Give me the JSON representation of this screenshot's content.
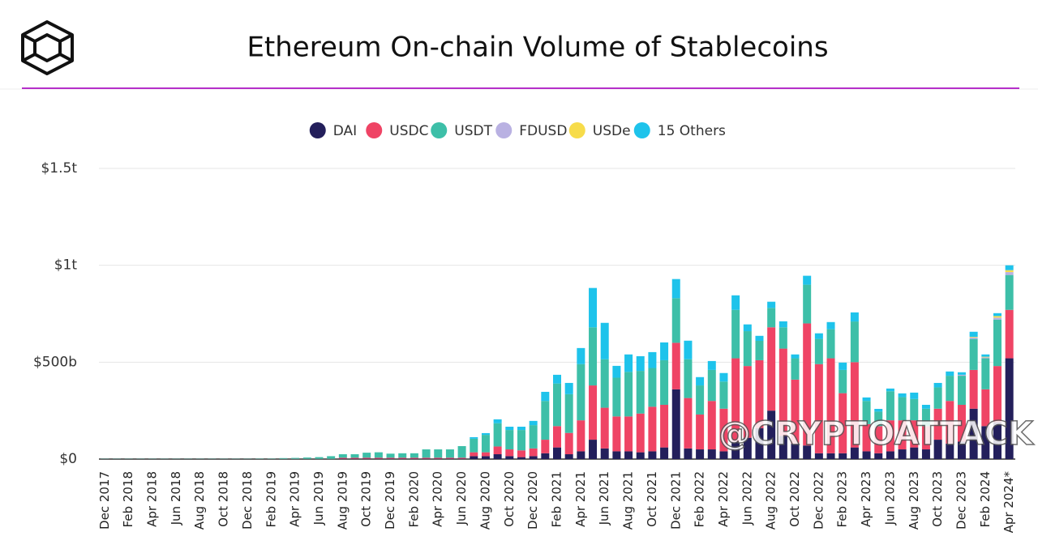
{
  "chart_data": {
    "type": "stacked-bar",
    "title": "Ethereum On-chain Volume of Stablecoins",
    "categories": [
      "Dec 2017",
      null,
      "Feb 2018",
      null,
      "Apr 2018",
      null,
      "Jun 2018",
      null,
      "Aug 2018",
      null,
      "Oct 2018",
      null,
      "Dec 2018",
      null,
      "Feb 2019",
      null,
      "Apr 2019",
      null,
      "Jun 2019",
      null,
      "Aug 2019",
      null,
      "Oct 2019",
      null,
      "Dec 2019",
      null,
      "Feb 2020",
      null,
      "Apr 2020",
      null,
      "Jun 2020",
      null,
      "Aug 2020",
      null,
      "Oct 2020",
      null,
      "Dec 2020",
      null,
      "Feb 2021",
      null,
      "Apr 2021",
      null,
      "Jun 2021",
      null,
      "Aug 2021",
      null,
      "Oct 2021",
      null,
      "Dec 2021",
      null,
      "Feb 2022",
      null,
      "Apr 2022",
      null,
      "Jun 2022",
      null,
      "Aug 2022",
      null,
      "Oct 2022",
      null,
      "Dec 2022",
      null,
      "Feb 2023",
      null,
      "Apr 2023",
      null,
      "Jun 2023",
      null,
      "Aug 2023",
      null,
      "Oct 2023",
      null,
      "Dec 2023",
      null,
      "Feb 2024",
      null,
      "Apr 2024*"
    ],
    "series": [
      {
        "name": "DAI",
        "color": "#231f5b",
        "values": [
          0,
          0,
          0,
          0,
          0,
          0,
          0,
          0,
          0,
          0,
          0,
          0,
          0,
          0,
          0,
          0,
          0,
          0,
          0,
          0,
          2,
          2,
          2,
          2,
          2,
          2,
          2,
          2,
          2,
          2,
          2,
          15,
          15,
          25,
          15,
          10,
          15,
          30,
          60,
          25,
          40,
          100,
          55,
          40,
          40,
          35,
          40,
          60,
          360,
          55,
          50,
          50,
          40,
          90,
          110,
          160,
          250,
          120,
          80,
          70,
          30,
          30,
          30,
          60,
          40,
          30,
          40,
          50,
          60,
          50,
          100,
          80,
          90,
          260,
          170,
          190,
          520
        ]
      },
      {
        "name": "USDC",
        "color": "#ef4465",
        "values": [
          0,
          0,
          0,
          0,
          0,
          0,
          0,
          0,
          0,
          0,
          0,
          0,
          0,
          1,
          1,
          1,
          1,
          1,
          1,
          1,
          5,
          5,
          5,
          5,
          5,
          5,
          5,
          5,
          5,
          5,
          5,
          20,
          20,
          40,
          35,
          35,
          40,
          70,
          110,
          110,
          160,
          280,
          210,
          180,
          180,
          200,
          230,
          220,
          240,
          260,
          180,
          250,
          220,
          430,
          370,
          350,
          430,
          450,
          330,
          630,
          460,
          490,
          310,
          440,
          140,
          140,
          160,
          150,
          140,
          120,
          160,
          220,
          190,
          200,
          190,
          290,
          250
        ]
      },
      {
        "name": "USDT",
        "color": "#3dbfa8",
        "values": [
          1,
          1,
          1,
          1,
          1,
          1,
          1,
          1,
          1,
          1,
          1,
          1,
          1,
          2,
          2,
          4,
          5,
          7,
          9,
          14,
          18,
          18,
          26,
          28,
          21,
          23,
          23,
          43,
          43,
          43,
          60,
          70,
          90,
          120,
          100,
          105,
          120,
          200,
          220,
          200,
          290,
          300,
          250,
          200,
          230,
          220,
          200,
          230,
          230,
          200,
          150,
          160,
          140,
          250,
          180,
          100,
          100,
          110,
          110,
          200,
          130,
          150,
          120,
          210,
          120,
          75,
          150,
          120,
          110,
          90,
          110,
          130,
          150,
          160,
          160,
          240,
          180
        ]
      },
      {
        "name": "FDUSD",
        "color": "#b9b1e2",
        "values": [
          0,
          0,
          0,
          0,
          0,
          0,
          0,
          0,
          0,
          0,
          0,
          0,
          0,
          0,
          0,
          0,
          0,
          0,
          0,
          0,
          0,
          0,
          0,
          0,
          0,
          0,
          0,
          0,
          0,
          0,
          0,
          0,
          0,
          0,
          0,
          0,
          0,
          0,
          0,
          0,
          0,
          0,
          0,
          0,
          0,
          0,
          0,
          0,
          0,
          0,
          0,
          0,
          0,
          0,
          0,
          0,
          0,
          0,
          0,
          0,
          0,
          0,
          0,
          0,
          0,
          0,
          0,
          0,
          0,
          0,
          0,
          0,
          5,
          8,
          5,
          10,
          15
        ]
      },
      {
        "name": "USDe",
        "color": "#f7dc4a",
        "values": [
          0,
          0,
          0,
          0,
          0,
          0,
          0,
          0,
          0,
          0,
          0,
          0,
          0,
          0,
          0,
          0,
          0,
          0,
          0,
          0,
          0,
          0,
          0,
          0,
          0,
          0,
          0,
          0,
          0,
          0,
          0,
          0,
          0,
          0,
          0,
          0,
          0,
          0,
          0,
          0,
          0,
          0,
          0,
          0,
          0,
          0,
          0,
          0,
          0,
          0,
          0,
          0,
          0,
          0,
          0,
          0,
          0,
          0,
          0,
          0,
          0,
          0,
          0,
          0,
          0,
          0,
          0,
          0,
          0,
          0,
          0,
          0,
          0,
          3,
          3,
          8,
          10
        ]
      },
      {
        "name": "15 Others",
        "color": "#1ec3eb",
        "values": [
          0,
          0,
          0,
          0,
          0,
          0,
          0,
          0,
          0,
          0,
          0,
          0,
          0,
          0,
          0,
          0,
          0,
          0,
          0,
          0,
          0,
          0,
          0,
          0,
          0,
          0,
          0,
          0,
          0,
          0,
          0,
          8,
          9,
          20,
          17,
          17,
          22,
          47,
          45,
          58,
          83,
          203,
          188,
          61,
          90,
          76,
          82,
          92,
          99,
          96,
          43,
          46,
          44,
          75,
          35,
          26,
          32,
          31,
          20,
          46,
          29,
          37,
          38,
          47,
          18,
          14,
          14,
          19,
          33,
          20,
          23,
          22,
          13,
          26,
          12,
          15,
          25
        ]
      }
    ],
    "ylim": [
      0,
      1500
    ],
    "yticks": [
      {
        "value": 0,
        "label": "$0"
      },
      {
        "value": 500,
        "label": "$500b"
      },
      {
        "value": 1000,
        "label": "$1t"
      },
      {
        "value": 1500,
        "label": "$1.5t"
      }
    ],
    "grid": true,
    "legend": "top"
  },
  "watermark": "@CRYPTOATTACK"
}
